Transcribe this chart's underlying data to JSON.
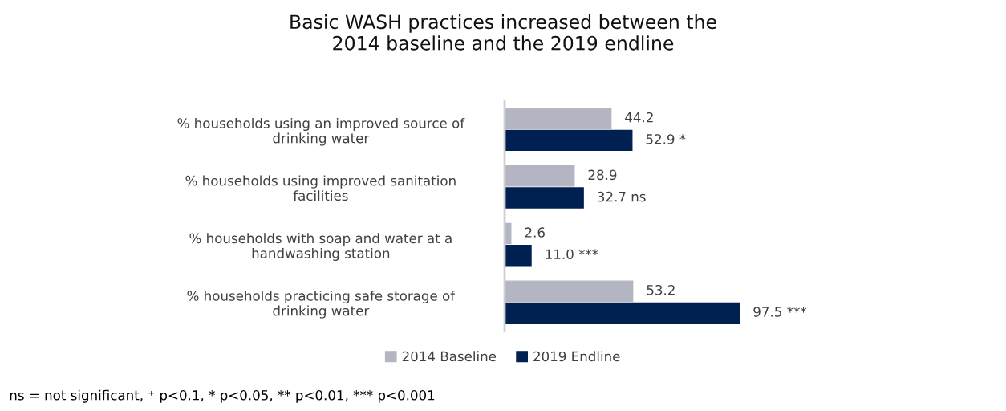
{
  "chart_data": {
    "type": "bar",
    "orientation": "horizontal",
    "title": "Basic WASH practices increased between the\n2014 baseline and the 2019 endline",
    "categories": [
      "% households using an improved source of\ndrinking water",
      "% households using improved sanitation\nfacilities",
      "% households with soap and water at a\nhandwashing station",
      "% households practicing safe storage of\ndrinking water"
    ],
    "series": [
      {
        "name": "2014 Baseline",
        "color": "#b3b6c2",
        "values": [
          44.2,
          28.9,
          2.6,
          53.2
        ],
        "value_labels": [
          "44.2",
          "28.9",
          "2.6",
          "53.2"
        ]
      },
      {
        "name": "2019 Endline",
        "color": "#002052",
        "values": [
          52.9,
          32.7,
          11.0,
          97.5
        ],
        "value_labels": [
          "52.9 *",
          "32.7 ns",
          "11.0 ***",
          "97.5 ***"
        ]
      }
    ],
    "legend": "bottom",
    "annotations": [
      "ns = not significant, ⁺ p<0.1, * p<0.05, ** p<0.01, *** p<0.001"
    ]
  }
}
